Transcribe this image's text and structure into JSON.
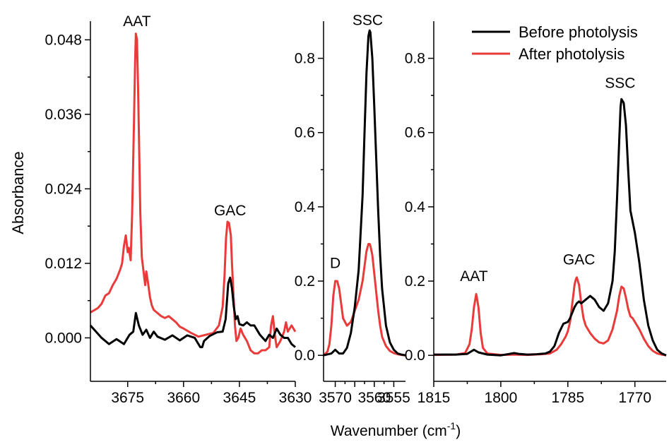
{
  "figure": {
    "ylabel": "Absorbance",
    "xlabel_main": "Wavenumber (cm",
    "xlabel_sup": "-1",
    "xlabel_close": ")"
  },
  "legend": {
    "entries": [
      {
        "label": "Before photolysis",
        "color": "#000000"
      },
      {
        "label": "After photolysis",
        "color": "#ea3b3b"
      }
    ]
  },
  "colors": {
    "before": "#000000",
    "after": "#ea3b3b",
    "axis": "#000000"
  },
  "chart_data": [
    {
      "type": "line",
      "panel": "left",
      "xlim": [
        3685,
        3630
      ],
      "ylim": [
        -0.007,
        0.051
      ],
      "xticks": [
        3675,
        3660,
        3645,
        3630
      ],
      "xtick_labels": [
        "3675",
        "3660",
        "3645",
        "3630"
      ],
      "yticks": [
        0.0,
        0.012,
        0.024,
        0.036,
        0.048
      ],
      "ytick_labels": [
        "0.000",
        "0.012",
        "0.024",
        "0.036",
        "0.048"
      ],
      "annotations": [
        {
          "text": "AAT",
          "x": 3672.5,
          "y": 0.0502
        },
        {
          "text": "GAC",
          "x": 3647.5,
          "y": 0.0197
        }
      ],
      "series": [
        {
          "name": "Before photolysis",
          "x": [
            3685,
            3682,
            3680,
            3678,
            3676,
            3674.5,
            3673.5,
            3672.8,
            3672,
            3671,
            3670,
            3669,
            3668,
            3667,
            3665,
            3663,
            3661,
            3659,
            3657,
            3655.5,
            3655,
            3654.5,
            3653,
            3651,
            3649.5,
            3648.7,
            3648,
            3647.5,
            3647,
            3646.5,
            3646,
            3645.5,
            3645,
            3644,
            3643,
            3642,
            3641,
            3639.5,
            3638,
            3637,
            3636,
            3635,
            3634,
            3633,
            3632,
            3631,
            3630
          ],
          "y": [
            0.002,
            0.0,
            -0.001,
            -0.0002,
            -0.001,
            0.0005,
            0.001,
            0.004,
            0.002,
            0.0005,
            0.0013,
            0.0,
            0.001,
            0.0002,
            -0.0003,
            0.0004,
            -0.0004,
            0.0004,
            0.0,
            -0.0015,
            -0.0015,
            -0.0005,
            0.0003,
            0.0009,
            0.001,
            0.003,
            0.0088,
            0.0097,
            0.008,
            0.005,
            0.003,
            0.0035,
            0.0022,
            0.002,
            0.0025,
            0.002,
            0.002,
            0.0005,
            -0.0005,
            0.0005,
            0.0,
            0.0015,
            0.0005,
            0.0,
            0.0,
            -0.001,
            -0.0015
          ]
        },
        {
          "name": "After photolysis",
          "x": [
            3685,
            3683,
            3682,
            3681,
            3680,
            3679,
            3678,
            3677,
            3676.5,
            3676,
            3675.5,
            3675,
            3674.7,
            3674.2,
            3673.8,
            3673.3,
            3673,
            3672.8,
            3672.5,
            3672.2,
            3671.9,
            3671.6,
            3671.2,
            3670.7,
            3670.3,
            3670,
            3669.5,
            3669,
            3668.5,
            3668,
            3667,
            3666,
            3665,
            3664,
            3663,
            3662,
            3661,
            3660,
            3658,
            3656,
            3654,
            3652,
            3650.5,
            3649.5,
            3649,
            3648.6,
            3648.2,
            3647.8,
            3647.3,
            3647,
            3646.6,
            3646.2,
            3645.8,
            3645.3,
            3644.7,
            3644,
            3643,
            3642,
            3641,
            3640,
            3639,
            3638,
            3637,
            3636.5,
            3636,
            3635.5,
            3635,
            3634,
            3633,
            3632.5,
            3632,
            3631,
            3630
          ],
          "y": [
            0.0041,
            0.0048,
            0.0055,
            0.0068,
            0.0072,
            0.0085,
            0.0095,
            0.011,
            0.012,
            0.0148,
            0.0165,
            0.0138,
            0.0145,
            0.0125,
            0.02,
            0.035,
            0.0445,
            0.049,
            0.048,
            0.04,
            0.03,
            0.02,
            0.013,
            0.0105,
            0.0085,
            0.0107,
            0.0087,
            0.0065,
            0.0052,
            0.0045,
            0.004,
            0.0035,
            0.0032,
            0.0035,
            0.003,
            0.0025,
            0.0018,
            0.0015,
            0.0008,
            0.0002,
            0.0005,
            0.0008,
            0.002,
            0.005,
            0.01,
            0.016,
            0.0187,
            0.0185,
            0.0165,
            0.012,
            0.007,
            0.002,
            -0.0005,
            0.0,
            0.0015,
            0.0005,
            -0.0005,
            -0.002,
            -0.0025,
            -0.0025,
            -0.002,
            -0.002,
            -0.0015,
            0.002,
            0.0035,
            0.0005,
            -0.0015,
            -0.0005,
            0.001,
            0.0025,
            0.001,
            0.002,
            0.001
          ]
        }
      ]
    },
    {
      "type": "line",
      "panel": "middle",
      "xlim": [
        3573,
        3552
      ],
      "ylim": [
        -0.07,
        0.9
      ],
      "xticks": [
        3570,
        3565,
        3560,
        3555
      ],
      "xtick_labels": [
        "3570",
        "",
        "3560",
        "3555"
      ],
      "yticks": [
        0.0,
        0.2,
        0.4,
        0.6,
        0.8
      ],
      "ytick_labels": [
        "0.0",
        "0.2",
        "0.4",
        "0.6",
        "0.8"
      ],
      "annotations": [
        {
          "text": "D",
          "x": 3570,
          "y": 0.235
        },
        {
          "text": "SSC",
          "x": 3561.7,
          "y": 0.89
        }
      ],
      "series": [
        {
          "name": "Before photolysis",
          "x": [
            3573,
            3571,
            3570,
            3569,
            3568,
            3567,
            3566,
            3565,
            3564,
            3563,
            3562.5,
            3562,
            3561.5,
            3561.2,
            3561,
            3560.5,
            3560,
            3559.5,
            3559,
            3558.5,
            3558,
            3557,
            3556,
            3555,
            3554,
            3553,
            3552
          ],
          "y": [
            0.0,
            0.005,
            0.015,
            0.005,
            0.005,
            0.02,
            0.06,
            0.13,
            0.23,
            0.43,
            0.6,
            0.76,
            0.86,
            0.875,
            0.87,
            0.8,
            0.67,
            0.53,
            0.39,
            0.27,
            0.18,
            0.08,
            0.035,
            0.015,
            0.005,
            0.002,
            0.0
          ]
        },
        {
          "name": "After photolysis",
          "x": [
            3573,
            3572,
            3571.5,
            3571,
            3570.5,
            3570,
            3569.5,
            3569,
            3568.5,
            3568,
            3567,
            3566,
            3565,
            3564,
            3563,
            3562.5,
            3562,
            3561.5,
            3561.2,
            3561,
            3560.5,
            3560,
            3559.5,
            3559,
            3558.5,
            3558,
            3557,
            3556,
            3555,
            3554,
            3553,
            3552
          ],
          "y": [
            0.0,
            0.01,
            0.03,
            0.08,
            0.16,
            0.2,
            0.2,
            0.18,
            0.14,
            0.1,
            0.08,
            0.09,
            0.12,
            0.15,
            0.2,
            0.24,
            0.28,
            0.3,
            0.3,
            0.295,
            0.27,
            0.22,
            0.17,
            0.12,
            0.08,
            0.05,
            0.025,
            0.012,
            0.006,
            0.003,
            0.001,
            0.0
          ]
        }
      ]
    },
    {
      "type": "line",
      "panel": "right",
      "xlim": [
        1815,
        1763
      ],
      "ylim": [
        -0.07,
        0.9
      ],
      "xticks": [
        1815,
        1800,
        1785,
        1770
      ],
      "xtick_labels": [
        "1815",
        "1800",
        "1785",
        "1770"
      ],
      "yticks": [
        0.0,
        0.2,
        0.4,
        0.6,
        0.8
      ],
      "ytick_labels": [
        "0.0",
        "0.2",
        "0.4",
        "0.6",
        "0.8"
      ],
      "annotations": [
        {
          "text": "AAT",
          "x": 1806,
          "y": 0.2
        },
        {
          "text": "GAC",
          "x": 1782.5,
          "y": 0.245
        },
        {
          "text": "SSC",
          "x": 1773.3,
          "y": 0.72
        }
      ],
      "series": [
        {
          "name": "Before photolysis",
          "x": [
            1815,
            1810,
            1807.5,
            1806,
            1805,
            1803,
            1800,
            1798,
            1797,
            1796,
            1794,
            1792,
            1790,
            1789,
            1788,
            1787,
            1786,
            1785,
            1784.5,
            1784,
            1783.5,
            1783,
            1782.5,
            1782,
            1781,
            1780,
            1779,
            1778,
            1777,
            1776,
            1775,
            1774.5,
            1774,
            1773.5,
            1773.2,
            1773,
            1772.5,
            1772,
            1771.5,
            1771,
            1770,
            1769,
            1768,
            1767,
            1766,
            1765,
            1764,
            1763
          ],
          "y": [
            0.002,
            0.002,
            0.004,
            0.015,
            0.008,
            0.002,
            0.0,
            0.004,
            0.006,
            0.004,
            0.002,
            0.003,
            0.005,
            0.01,
            0.025,
            0.06,
            0.085,
            0.09,
            0.1,
            0.115,
            0.13,
            0.14,
            0.145,
            0.14,
            0.15,
            0.16,
            0.15,
            0.13,
            0.12,
            0.14,
            0.2,
            0.28,
            0.42,
            0.58,
            0.67,
            0.69,
            0.68,
            0.62,
            0.5,
            0.39,
            0.33,
            0.25,
            0.15,
            0.08,
            0.04,
            0.015,
            0.005,
            0.0
          ]
        },
        {
          "name": "After photolysis",
          "x": [
            1815,
            1810,
            1808,
            1807,
            1806.5,
            1806,
            1805.5,
            1805,
            1804.5,
            1804,
            1803,
            1800,
            1797,
            1794,
            1791,
            1789,
            1787.5,
            1786.5,
            1786,
            1785.5,
            1785,
            1784.5,
            1784,
            1783.5,
            1783.2,
            1783,
            1782.5,
            1782,
            1781.5,
            1781,
            1780,
            1779,
            1778,
            1777,
            1776,
            1775,
            1774,
            1773.5,
            1773,
            1772.5,
            1772,
            1771.5,
            1771,
            1770.5,
            1770,
            1769,
            1768,
            1767,
            1766,
            1765,
            1764,
            1763
          ],
          "y": [
            0.001,
            0.002,
            0.006,
            0.03,
            0.07,
            0.13,
            0.165,
            0.13,
            0.06,
            0.02,
            0.005,
            0.001,
            0.002,
            0.001,
            0.003,
            0.005,
            0.015,
            0.03,
            0.04,
            0.05,
            0.065,
            0.09,
            0.14,
            0.19,
            0.205,
            0.21,
            0.19,
            0.14,
            0.1,
            0.08,
            0.06,
            0.045,
            0.035,
            0.032,
            0.04,
            0.07,
            0.12,
            0.16,
            0.185,
            0.18,
            0.155,
            0.125,
            0.105,
            0.1,
            0.09,
            0.07,
            0.045,
            0.025,
            0.012,
            0.005,
            0.002,
            0.0
          ]
        }
      ]
    }
  ]
}
